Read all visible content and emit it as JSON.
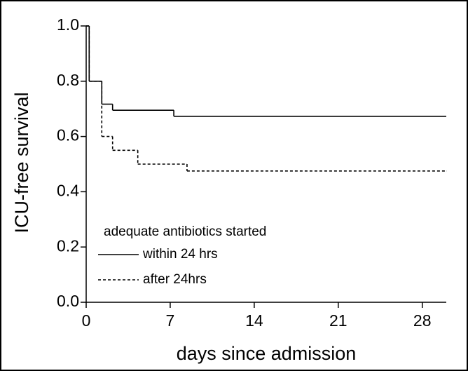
{
  "chart_data": {
    "type": "line",
    "step": "post",
    "xlabel": "days since admission",
    "ylabel": "ICU-free survival",
    "xlim": [
      0,
      30
    ],
    "xticks": [
      0,
      7,
      14,
      21,
      28
    ],
    "ylim": [
      0,
      1.0
    ],
    "yticks": [
      {
        "value": 0,
        "label": "0.0"
      },
      0.2,
      0.4,
      0.6,
      0.8,
      {
        "value": 1.0,
        "label": "1.0"
      }
    ],
    "legend_title": "adequate antibiotics started",
    "series": [
      {
        "name": "within 24 hrs",
        "color": "#000000",
        "dash": "solid",
        "x": [
          0,
          0.25,
          1.3,
          2.2,
          7.3,
          30
        ],
        "values": [
          1.0,
          0.8,
          0.717,
          0.695,
          0.673,
          0.673
        ]
      },
      {
        "name": "after 24hrs",
        "color": "#000000",
        "dash": "dashed",
        "x": [
          0,
          0.25,
          1.3,
          2.2,
          4.3,
          8.4,
          30
        ],
        "values": [
          1.0,
          0.8,
          0.6,
          0.55,
          0.5,
          0.475,
          0.475
        ]
      }
    ]
  }
}
